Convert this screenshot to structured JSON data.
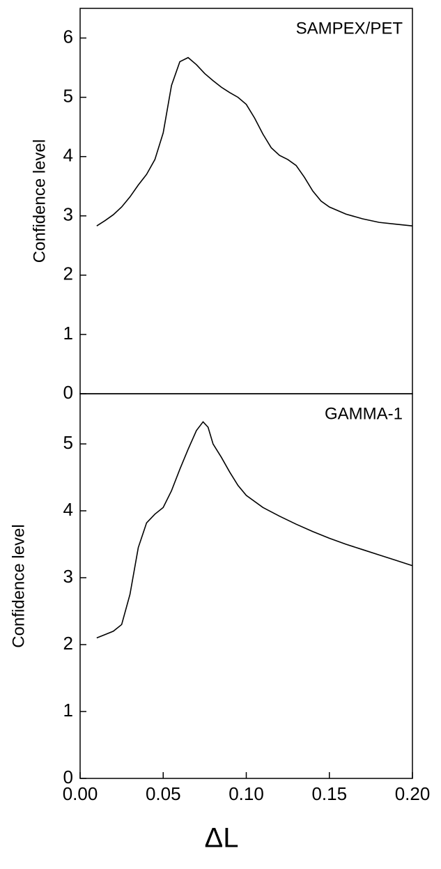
{
  "chart_data": [
    {
      "type": "line",
      "annotation": "SAMPEX/PET",
      "ylabel": "Confidence level",
      "x": [
        0.01,
        0.015,
        0.02,
        0.025,
        0.03,
        0.035,
        0.04,
        0.045,
        0.05,
        0.055,
        0.06,
        0.065,
        0.07,
        0.075,
        0.08,
        0.085,
        0.09,
        0.095,
        0.1,
        0.105,
        0.11,
        0.115,
        0.12,
        0.125,
        0.13,
        0.135,
        0.14,
        0.145,
        0.15,
        0.16,
        0.17,
        0.18,
        0.19,
        0.2
      ],
      "values": [
        2.83,
        2.92,
        3.02,
        3.15,
        3.32,
        3.52,
        3.7,
        3.95,
        4.4,
        5.2,
        5.6,
        5.67,
        5.55,
        5.4,
        5.28,
        5.17,
        5.08,
        5.0,
        4.88,
        4.65,
        4.38,
        4.15,
        4.02,
        3.95,
        3.85,
        3.65,
        3.42,
        3.25,
        3.15,
        3.03,
        2.95,
        2.89,
        2.86,
        2.83
      ],
      "color": "#000000",
      "xlim": [
        0,
        0.2
      ],
      "ylim": [
        0,
        6.5
      ],
      "yticks": [
        0,
        1,
        2,
        3,
        4,
        5,
        6
      ]
    },
    {
      "type": "line",
      "annotation": "GAMMA-1",
      "ylabel": "Confidence level",
      "xlabel": "ΔL",
      "x": [
        0.01,
        0.015,
        0.02,
        0.025,
        0.03,
        0.035,
        0.04,
        0.045,
        0.05,
        0.055,
        0.06,
        0.065,
        0.07,
        0.074,
        0.077,
        0.08,
        0.085,
        0.09,
        0.095,
        0.1,
        0.11,
        0.12,
        0.13,
        0.14,
        0.15,
        0.16,
        0.17,
        0.18,
        0.19,
        0.2
      ],
      "values": [
        2.1,
        2.15,
        2.2,
        2.3,
        2.75,
        3.45,
        3.82,
        3.95,
        4.05,
        4.3,
        4.62,
        4.92,
        5.2,
        5.33,
        5.25,
        5.0,
        4.8,
        4.58,
        4.38,
        4.23,
        4.05,
        3.92,
        3.8,
        3.69,
        3.59,
        3.5,
        3.42,
        3.34,
        3.26,
        3.18
      ],
      "color": "#000000",
      "xlim": [
        0,
        0.2
      ],
      "ylim": [
        0,
        5.75
      ],
      "yticks": [
        0,
        1,
        2,
        3,
        4,
        5
      ],
      "xticks": [
        {
          "value": 0,
          "label": "0.00"
        },
        0.05,
        {
          "value": 0.1,
          "label": "0.10"
        },
        0.15,
        {
          "value": 0.2,
          "label": "0.20"
        }
      ]
    }
  ]
}
